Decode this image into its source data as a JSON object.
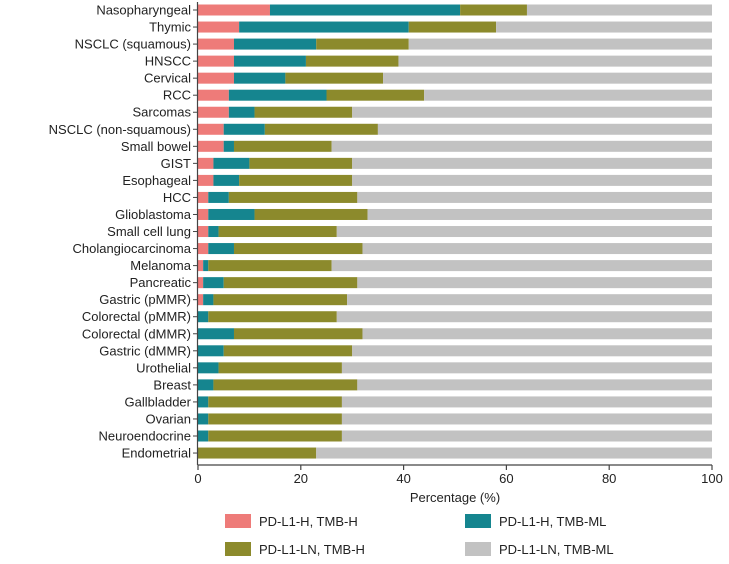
{
  "chart_data": {
    "type": "bar",
    "orientation": "horizontal",
    "stacked": true,
    "categories": [
      "Nasopharyngeal",
      "Thymic",
      "NSCLC (squamous)",
      "HNSCC",
      "Cervical",
      "RCC",
      "Sarcomas",
      "NSCLC (non-squamous)",
      "Small bowel",
      "GIST",
      "Esophageal",
      "HCC",
      "Glioblastoma",
      "Small cell lung",
      "Cholangiocarcinoma",
      "Melanoma",
      "Pancreatic",
      "Gastric (pMMR)",
      "Colorectal (pMMR)",
      "Colorectal (dMMR)",
      "Gastric (dMMR)",
      "Urothelial",
      "Breast",
      "Gallbladder",
      "Ovarian",
      "Neuroendocrine",
      "Endometrial"
    ],
    "series": [
      {
        "name": "PD-L1-H, TMB-H",
        "color": "#ee7b79",
        "values": [
          14,
          8,
          7,
          7,
          7,
          6,
          6,
          5,
          5,
          3,
          3,
          2,
          2,
          2,
          2,
          1,
          1,
          1,
          0,
          0,
          0,
          0,
          0,
          0,
          0,
          0,
          0
        ]
      },
      {
        "name": "PD-L1-H, TMB-ML",
        "color": "#15858f",
        "values": [
          37,
          33,
          16,
          14,
          10,
          19,
          5,
          8,
          2,
          7,
          5,
          4,
          9,
          2,
          5,
          1,
          4,
          2,
          2,
          7,
          5,
          4,
          3,
          2,
          2,
          2,
          0
        ]
      },
      {
        "name": "PD-L1-LN, TMB-H",
        "color": "#8c8a2c",
        "values": [
          13,
          17,
          18,
          18,
          19,
          19,
          19,
          22,
          19,
          20,
          22,
          25,
          22,
          23,
          25,
          24,
          26,
          26,
          25,
          25,
          25,
          24,
          28,
          26,
          26,
          26,
          23
        ]
      },
      {
        "name": "PD-L1-LN, TMB-ML",
        "color": "#c2c2c2",
        "values": [
          36,
          42,
          59,
          61,
          64,
          56,
          70,
          65,
          74,
          70,
          70,
          69,
          67,
          73,
          68,
          74,
          69,
          71,
          73,
          68,
          70,
          72,
          69,
          72,
          72,
          72,
          77
        ]
      }
    ],
    "xlabel": "Percentage (%)",
    "xlim": [
      0,
      100
    ],
    "xticks": [
      "0",
      "20",
      "40",
      "60",
      "80",
      "100"
    ],
    "grid": false,
    "legend_placement": "bottom"
  }
}
